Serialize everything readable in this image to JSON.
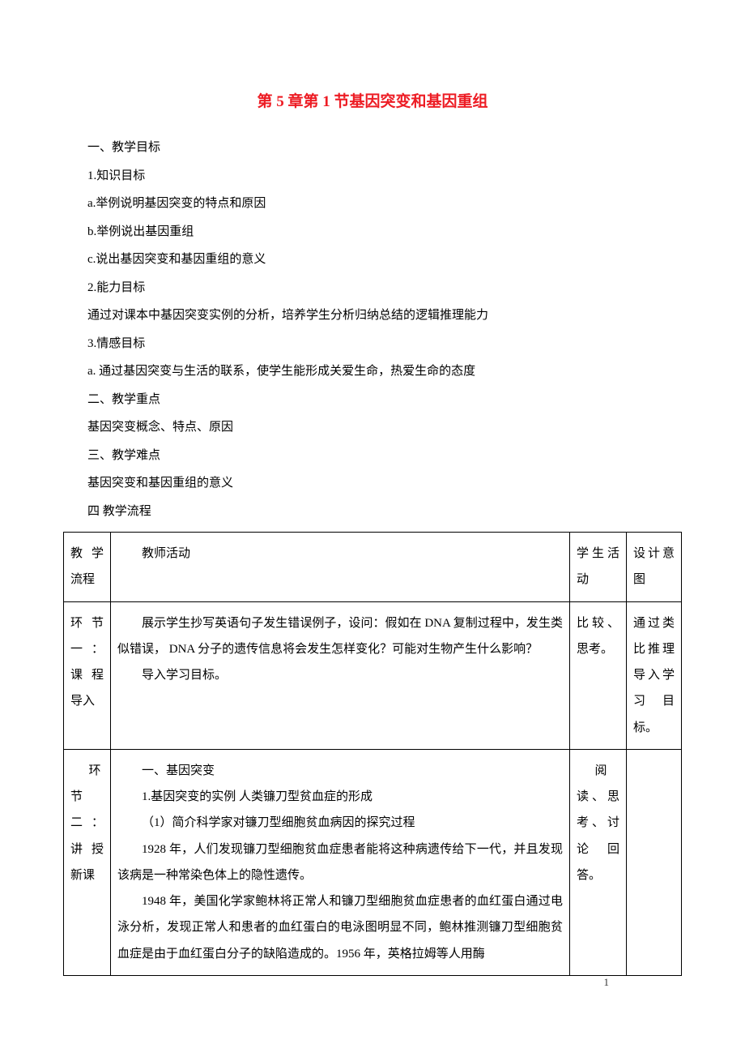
{
  "title_color": "#ed1c24",
  "text_color": "#000000",
  "title": "第 5 章第 1 节基因突变和基因重组",
  "section1": "一、教学目标",
  "s1_1": "1.知识目标",
  "s1_1a": "a.举例说明基因突变的特点和原因",
  "s1_1b": "b.举例说出基因重组",
  "s1_1c": "c.说出基因突变和基因重组的意义",
  "s1_2": "2.能力目标",
  "s1_2text": "通过对课本中基因突变实例的分析，培养学生分析归纳总结的逻辑推理能力",
  "s1_3": "3.情感目标",
  "s1_3a": "a. 通过基因突变与生活的联系，使学生能形成关爱生命，热爱生命的态度",
  "section2": "二、教学重点",
  "s2_text": "基因突变概念、特点、原因",
  "section3": "三、教学难点",
  "s3_text": "基因突变和基因重组的意义",
  "section4": "四 教学流程",
  "table": {
    "header": {
      "c1": "教学流程",
      "c2": "教师活动",
      "c3": "学生活动",
      "c4": "设计意图"
    },
    "row1": {
      "c1": "环节一：课程导入",
      "c2a": "展示学生抄写英语句子发生错误例子，设问：假如在 DNA 复制过程中，发生类似错误， DNA 分子的遗传信息将会发生怎样变化？可能对生物产生什么影响？",
      "c2b": "导入学习目标。",
      "c3": "比较、思考。",
      "c4": "通过类比推理导入学习目标。"
    },
    "row2": {
      "c1": "环节二：讲授新课",
      "c2a": "一、基因突变",
      "c2b": "1.基因突变的实例  人类镰刀型贫血症的形成",
      "c2c": "（1）简介科学家对镰刀型细胞贫血病因的探究过程",
      "c2d": "1928 年，人们发现镰刀型细胞贫血症患者能将这种病遗传给下一代，并且发现该病是一种常染色体上的隐性遗传。",
      "c2e": "1948 年，美国化学家鲍林将正常人和镰刀型细胞贫血症患者的血红蛋白通过电泳分析，发现正常人和患者的血红蛋白的电泳图明显不同，鲍林推测镰刀型细胞贫血症是由于血红蛋白分子的缺陷造成的。1956 年，英格拉姆等人用酶",
      "c3": "阅读、思考、讨论回答。",
      "c4": ""
    }
  },
  "page_number": "1"
}
